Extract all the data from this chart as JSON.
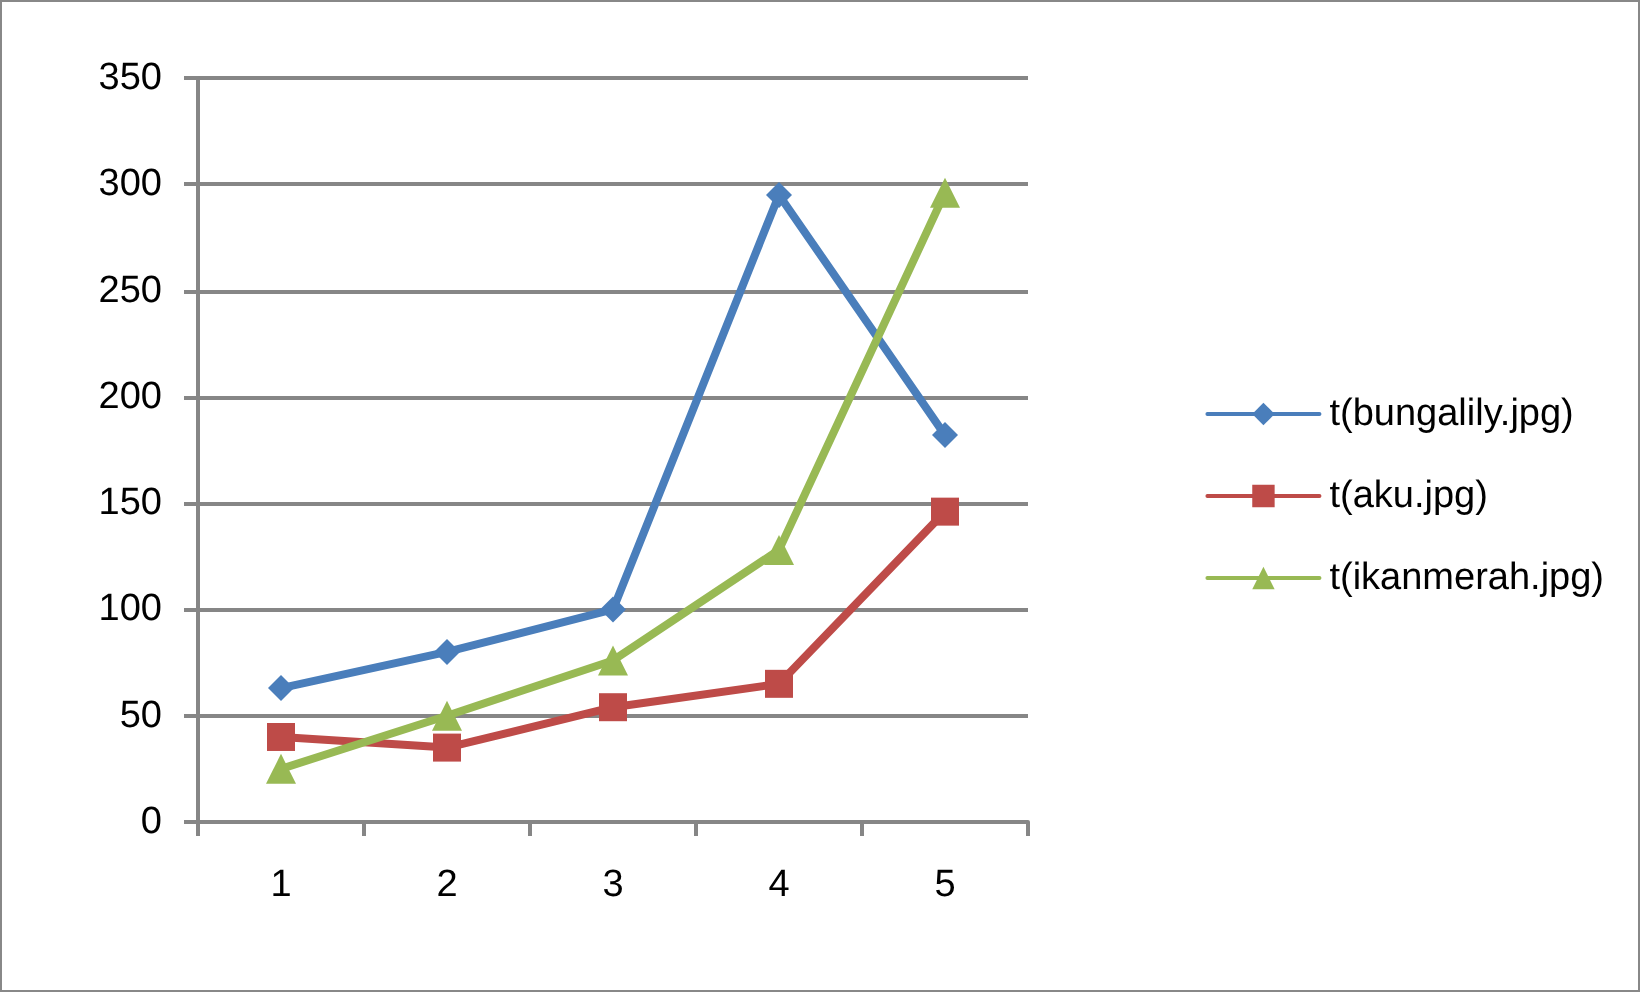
{
  "chart_data": {
    "type": "line",
    "categories": [
      "1",
      "2",
      "3",
      "4",
      "5"
    ],
    "series": [
      {
        "name": "t(bungalily.jpg)",
        "color": "#4a7ebb",
        "marker": "diamond",
        "values": [
          63,
          80,
          100,
          295,
          182
        ]
      },
      {
        "name": "t(aku.jpg)",
        "color": "#be4b48",
        "marker": "square",
        "values": [
          40,
          35,
          54,
          65,
          146
        ]
      },
      {
        "name": "t(ikanmerah.jpg)",
        "color": "#98b954",
        "marker": "triangle",
        "values": [
          25,
          50,
          76,
          128,
          296
        ]
      }
    ],
    "ylim": [
      0,
      350
    ],
    "yticks": [
      0,
      50,
      100,
      150,
      200,
      250,
      300,
      350
    ],
    "grid": "y",
    "legend": "right",
    "line_style": "solid"
  }
}
